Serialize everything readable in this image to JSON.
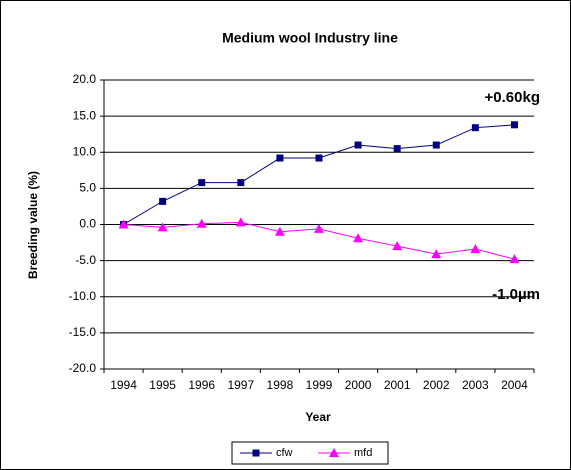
{
  "chart_data": {
    "type": "line",
    "title": "Medium wool Industry line",
    "x_label": "Year",
    "y_label": "Breeding value (%)",
    "categories": [
      "1994",
      "1995",
      "1996",
      "1997",
      "1998",
      "1999",
      "2000",
      "2001",
      "2002",
      "2003",
      "2004"
    ],
    "series": [
      {
        "name": "cfw",
        "color": "#000080",
        "marker": "square",
        "values": [
          0,
          3.2,
          5.8,
          5.8,
          9.2,
          9.2,
          11.0,
          10.5,
          11.0,
          13.4,
          13.8
        ]
      },
      {
        "name": "mfd",
        "color": "#ff00ff",
        "marker": "triangle",
        "values": [
          0,
          -0.4,
          0.1,
          0.3,
          -1.0,
          -0.6,
          -1.9,
          -3.0,
          -4.1,
          -3.4,
          -4.8
        ]
      }
    ],
    "ylim": [
      -20,
      20
    ],
    "yticks": [
      {
        "value": -20,
        "label": "-20.0"
      },
      {
        "value": -15,
        "label": "-15.0"
      },
      {
        "value": -10,
        "label": "-10.0"
      },
      {
        "value": -5,
        "label": "-5.0"
      },
      {
        "value": 0,
        "label": "0.0"
      },
      {
        "value": 5,
        "label": "5.0"
      },
      {
        "value": 10,
        "label": "10.0"
      },
      {
        "value": 15,
        "label": "15.0"
      },
      {
        "value": 20,
        "label": "20.0"
      }
    ],
    "grid": true,
    "legend": "bottom",
    "annotations": [
      "+0.60kg",
      "-1.0µm"
    ]
  }
}
